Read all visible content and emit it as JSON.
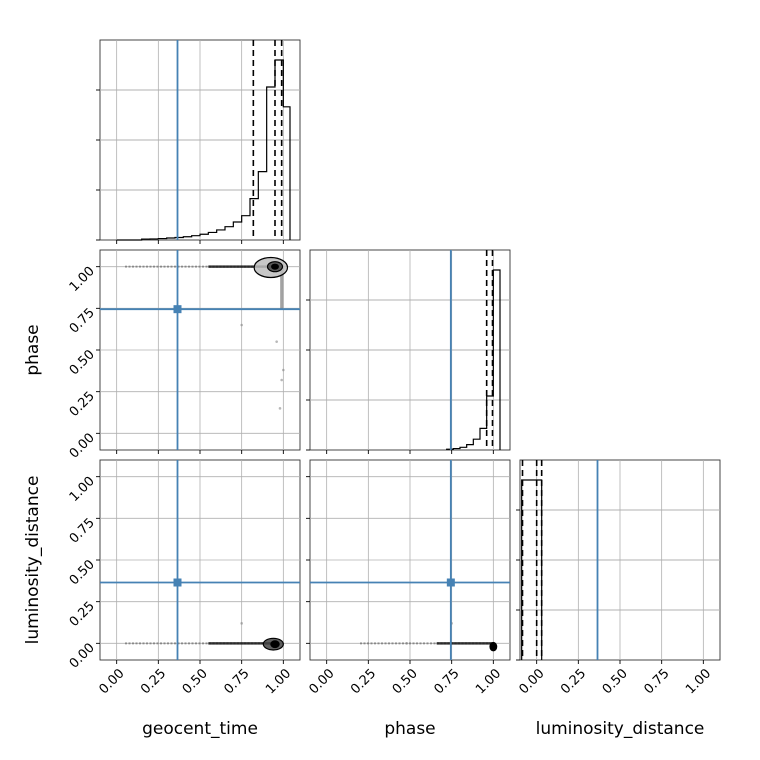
{
  "chart_data": {
    "type": "corner",
    "parameters": [
      "geocent_time",
      "phase",
      "luminosity_distance"
    ],
    "axis_range": [
      -0.1,
      1.1
    ],
    "ticks": [
      0.0,
      0.25,
      0.5,
      0.75,
      1.0
    ],
    "tick_labels": [
      "0.00",
      "0.25",
      "0.50",
      "0.75",
      "1.00"
    ],
    "grid": true,
    "truth_values": {
      "geocent_time": 0.365,
      "phase": 0.745,
      "luminosity_distance": 0.365
    },
    "truth_color": "#4682b4",
    "histograms": [
      {
        "parameter": "geocent_time",
        "bin_edges": [
          0.0,
          0.05,
          0.1,
          0.15,
          0.2,
          0.25,
          0.3,
          0.35,
          0.4,
          0.45,
          0.5,
          0.55,
          0.6,
          0.65,
          0.7,
          0.75,
          0.8,
          0.85,
          0.9,
          0.95,
          1.0,
          1.04
        ],
        "counts": [
          0,
          0,
          0,
          0.005,
          0.006,
          0.008,
          0.011,
          0.014,
          0.018,
          0.024,
          0.032,
          0.042,
          0.056,
          0.074,
          0.1,
          0.135,
          0.23,
          0.38,
          0.85,
          1.0,
          0.74
        ],
        "quantile_lines": [
          0.82,
          0.95,
          0.99
        ]
      },
      {
        "parameter": "phase",
        "bin_edges": [
          0.72,
          0.76,
          0.8,
          0.84,
          0.88,
          0.92,
          0.96,
          1.0,
          1.04
        ],
        "counts": [
          0.004,
          0.008,
          0.015,
          0.03,
          0.06,
          0.12,
          0.3,
          1.0
        ],
        "quantile_lines": [
          0.96,
          0.995
        ]
      },
      {
        "parameter": "luminosity_distance",
        "bin_edges": [
          -0.09,
          -0.03,
          0.03
        ],
        "counts": [
          1.0,
          1.0
        ],
        "quantile_lines": [
          -0.085,
          0.0,
          0.03
        ]
      }
    ],
    "scatter_2d": [
      {
        "x": "geocent_time",
        "y": "phase",
        "horizontal_band": {
          "x": [
            0.05,
            0.95
          ],
          "y": 1.0
        },
        "vertical_band": {
          "x": 0.99,
          "y": [
            0.75,
            0.98
          ]
        },
        "outliers": [
          [
            0.75,
            0.65
          ],
          [
            1.0,
            0.38
          ],
          [
            0.99,
            0.32
          ],
          [
            0.98,
            0.15
          ],
          [
            0.96,
            0.55
          ]
        ],
        "contours": [
          {
            "cx": 0.95,
            "cy": 1.0,
            "rx": 0.02,
            "ry": 0.015
          },
          {
            "cx": 0.95,
            "cy": 1.0,
            "rx": 0.045,
            "ry": 0.03
          },
          {
            "cx": 0.925,
            "cy": 0.995,
            "rx": 0.1,
            "ry": 0.06
          }
        ]
      },
      {
        "x": "geocent_time",
        "y": "luminosity_distance",
        "horizontal_band": {
          "x": [
            0.05,
            0.95
          ],
          "y": 0.0
        },
        "outliers": [
          [
            0.75,
            0.12
          ]
        ],
        "contours": [
          {
            "cx": 0.95,
            "cy": -0.005,
            "rx": 0.025,
            "ry": 0.02
          },
          {
            "cx": 0.94,
            "cy": -0.005,
            "rx": 0.06,
            "ry": 0.035
          }
        ]
      },
      {
        "x": "phase",
        "y": "luminosity_distance",
        "horizontal_band": {
          "x": [
            0.2,
            1.0
          ],
          "y": 0.0
        },
        "outliers": [
          [
            0.75,
            0.12
          ],
          [
            0.48,
            0.0
          ]
        ],
        "contours": [
          {
            "cx": 1.0,
            "cy": -0.02,
            "rx": 0.02,
            "ry": 0.025
          }
        ]
      }
    ]
  }
}
